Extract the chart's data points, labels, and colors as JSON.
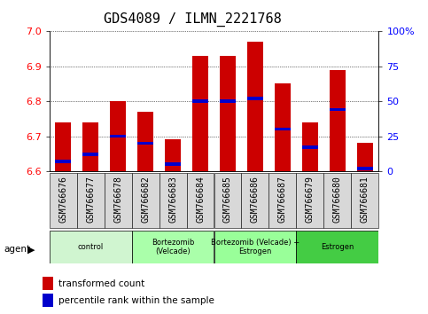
{
  "title": "GDS4089 / ILMN_2221768",
  "samples": [
    "GSM766676",
    "GSM766677",
    "GSM766678",
    "GSM766682",
    "GSM766683",
    "GSM766684",
    "GSM766685",
    "GSM766686",
    "GSM766687",
    "GSM766679",
    "GSM766680",
    "GSM766681"
  ],
  "transformed_count": [
    6.74,
    6.74,
    6.8,
    6.77,
    6.69,
    6.93,
    6.93,
    6.97,
    6.85,
    6.74,
    6.89,
    6.68
  ],
  "percentile_rank": [
    7,
    12,
    25,
    20,
    5,
    50,
    50,
    52,
    30,
    17,
    44,
    2
  ],
  "bar_base": 6.6,
  "ylim_left": [
    6.6,
    7.0
  ],
  "ylim_right": [
    0,
    100
  ],
  "yticks_left": [
    6.6,
    6.7,
    6.8,
    6.9,
    7.0
  ],
  "yticks_right": [
    0,
    25,
    50,
    75,
    100
  ],
  "bar_color": "#cc0000",
  "percentile_color": "#0000cc",
  "groups": [
    {
      "label": "control",
      "start": 0,
      "end": 3,
      "color": "#ddffd0"
    },
    {
      "label": "Bortezomib\n(Velcade)",
      "start": 3,
      "end": 6,
      "color": "#aaffaa"
    },
    {
      "label": "Bortezomib (Velcade) +\nEstrogen",
      "start": 6,
      "end": 9,
      "color": "#88ff88"
    },
    {
      "label": "Estrogen",
      "start": 9,
      "end": 12,
      "color": "#44ee44"
    }
  ],
  "agent_label": "agent",
  "legend_bar_label": "transformed count",
  "legend_pct_label": "percentile rank within the sample",
  "title_fontsize": 11,
  "tick_label_fontsize": 7,
  "bar_width": 0.6,
  "background_color": "#ffffff",
  "xticklabel_bg": "#d8d8d8",
  "group_colors": [
    "#d0f5d0",
    "#aaffaa",
    "#99ff99",
    "#44cc44"
  ]
}
